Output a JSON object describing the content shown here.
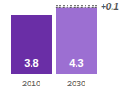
{
  "chart_data": {
    "type": "bar",
    "categories": [
      "2010",
      "2030"
    ],
    "stacked": true,
    "data_labels": true,
    "tick_labels": "x",
    "ylim": [
      0,
      4.5
    ],
    "yticks": [],
    "series": [
      {
        "values": [
          3.8,
          4.3
        ],
        "colors": [
          "#6a2ea6",
          "#9c6fd2"
        ]
      },
      {
        "values": [
          null,
          0.1
        ],
        "value_labels": [
          null,
          "+0.1"
        ],
        "color": "#555555",
        "line_style": "dotted"
      }
    ]
  }
}
